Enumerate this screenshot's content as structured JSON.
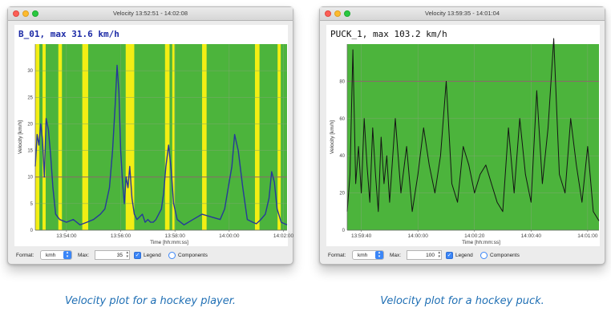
{
  "left_window": {
    "title": "Velocity 13:52:51 - 14:02:08",
    "controls": {
      "format_label": "Format:",
      "format_value": "kmh",
      "max_label": "Max:",
      "max_value": "35",
      "legend_label": "Legend",
      "legend_checked": true,
      "components_label": "Components",
      "components_checked": false
    }
  },
  "right_window": {
    "title": "Velocity 13:59:35 - 14:01:04",
    "controls": {
      "format_label": "Format:",
      "format_value": "kmh",
      "max_label": "Max:",
      "max_value": "100",
      "legend_label": "Legend",
      "legend_checked": true,
      "components_label": "Components",
      "components_checked": false
    }
  },
  "captions": {
    "left": "Velocity plot for a hockey player.",
    "right": "Velocity plot for a hockey puck."
  },
  "colors": {
    "plot_green": "#4cb43c",
    "band_yellow": "#f2ee14",
    "series_blue": "#26399a",
    "series_black": "#141414",
    "title_blue": "#1c2aa6",
    "caption_blue": "#1f6fb4",
    "checkbox_blue": "#3b86f7"
  },
  "chart_data": [
    {
      "type": "line",
      "title": "B_01, max 31.6 km/h",
      "xlabel": "Time [hh:mm:ss]",
      "ylabel": "Velocity [km/h]",
      "xlim": [
        "13:52:51",
        "14:02:08"
      ],
      "ylim": [
        0,
        35
      ],
      "x_ticks": [
        "13:54:00",
        "13:56:00",
        "13:58:00",
        "14:00:00",
        "14:02:00"
      ],
      "y_ticks": [
        0,
        5,
        10,
        15,
        20,
        25,
        30
      ],
      "highlight_bands_hhmmss": [
        [
          "13:52:51",
          "13:53:00"
        ],
        [
          "13:53:07",
          "13:53:14"
        ],
        [
          "13:53:42",
          "13:53:50"
        ],
        [
          "13:54:35",
          "13:54:48"
        ],
        [
          "13:56:11",
          "13:56:30"
        ],
        [
          "13:57:38",
          "13:57:48"
        ],
        [
          "13:57:54",
          "13:57:59"
        ],
        [
          "13:59:00",
          "13:59:10"
        ],
        [
          "14:00:57",
          "14:01:07"
        ],
        [
          "14:01:47",
          "14:01:54"
        ]
      ],
      "series": [
        {
          "color": "blue",
          "x": [
            "13:52:51",
            "13:52:55",
            "13:52:59",
            "13:53:03",
            "13:53:07",
            "13:53:11",
            "13:53:15",
            "13:53:20",
            "13:53:25",
            "13:53:30",
            "13:53:36",
            "13:53:45",
            "13:54:00",
            "13:54:15",
            "13:54:30",
            "13:54:45",
            "13:55:00",
            "13:55:15",
            "13:55:25",
            "13:55:35",
            "13:55:42",
            "13:55:48",
            "13:55:52",
            "13:55:56",
            "13:56:00",
            "13:56:04",
            "13:56:08",
            "13:56:12",
            "13:56:16",
            "13:56:20",
            "13:56:25",
            "13:56:30",
            "13:56:36",
            "13:56:42",
            "13:56:48",
            "13:56:54",
            "13:57:00",
            "13:57:06",
            "13:57:12",
            "13:57:18",
            "13:57:24",
            "13:57:30",
            "13:57:35",
            "13:57:40",
            "13:57:46",
            "13:57:52",
            "13:57:57",
            "13:58:05",
            "13:58:20",
            "13:58:40",
            "13:59:00",
            "13:59:20",
            "13:59:40",
            "13:59:50",
            "14:00:00",
            "14:00:06",
            "14:00:12",
            "14:00:20",
            "14:00:30",
            "14:00:40",
            "14:00:52",
            "14:01:00",
            "14:01:10",
            "14:01:20",
            "14:01:28",
            "14:01:34",
            "14:01:40",
            "14:01:46",
            "14:01:55",
            "14:02:08"
          ],
          "y": [
            12,
            18,
            16,
            20,
            17,
            10,
            21,
            19,
            14,
            8,
            3,
            2,
            1.5,
            2,
            1,
            1.5,
            2,
            3,
            4,
            8,
            15,
            24,
            31,
            26,
            15,
            9,
            5,
            10,
            8,
            12,
            6,
            3,
            2,
            2.5,
            3,
            1.5,
            2,
            1.5,
            1.5,
            2,
            3,
            4,
            7,
            12,
            16,
            11,
            5,
            2,
            1,
            2,
            3,
            2.5,
            2,
            4,
            9,
            12,
            18,
            15,
            8,
            2,
            1.5,
            1.2,
            2,
            3,
            6,
            11,
            9,
            4,
            1.5,
            1
          ]
        }
      ]
    },
    {
      "type": "line",
      "title": "PUCK_1, max 103.2 km/h",
      "xlabel": "Time [hh:mm:ss]",
      "ylabel": "Velocity [km/h]",
      "xlim": [
        "13:59:35",
        "14:01:04"
      ],
      "ylim": [
        0,
        100
      ],
      "x_ticks": [
        "13:59:40",
        "14:00:00",
        "14:00:20",
        "14:00:40",
        "14:01:00"
      ],
      "y_ticks": [
        0,
        20,
        40,
        60,
        80
      ],
      "series": [
        {
          "color": "black",
          "x": [
            "13:59:35",
            "13:59:36",
            "13:59:37",
            "13:59:38",
            "13:59:39",
            "13:59:40",
            "13:59:41",
            "13:59:42",
            "13:59:43",
            "13:59:44",
            "13:59:45",
            "13:59:46",
            "13:59:47",
            "13:59:48",
            "13:59:49",
            "13:59:50",
            "13:59:52",
            "13:59:54",
            "13:59:56",
            "13:59:58",
            "14:00:00",
            "14:00:02",
            "14:00:04",
            "14:00:06",
            "14:00:08",
            "14:00:10",
            "14:00:12",
            "14:00:14",
            "14:00:16",
            "14:00:18",
            "14:00:20",
            "14:00:22",
            "14:00:24",
            "14:00:26",
            "14:00:28",
            "14:00:30",
            "14:00:32",
            "14:00:34",
            "14:00:36",
            "14:00:38",
            "14:00:40",
            "14:00:42",
            "14:00:44",
            "14:00:46",
            "14:00:48",
            "14:00:50",
            "14:00:52",
            "14:00:54",
            "14:00:56",
            "14:00:58",
            "14:01:00",
            "14:01:02",
            "14:01:04"
          ],
          "y": [
            10,
            30,
            97,
            25,
            45,
            20,
            60,
            35,
            15,
            55,
            30,
            10,
            50,
            25,
            40,
            15,
            60,
            20,
            45,
            10,
            30,
            55,
            35,
            20,
            40,
            80,
            25,
            15,
            45,
            35,
            20,
            30,
            35,
            25,
            15,
            10,
            55,
            20,
            60,
            30,
            15,
            75,
            25,
            55,
            103,
            30,
            20,
            60,
            35,
            15,
            45,
            10,
            5
          ]
        }
      ]
    }
  ]
}
